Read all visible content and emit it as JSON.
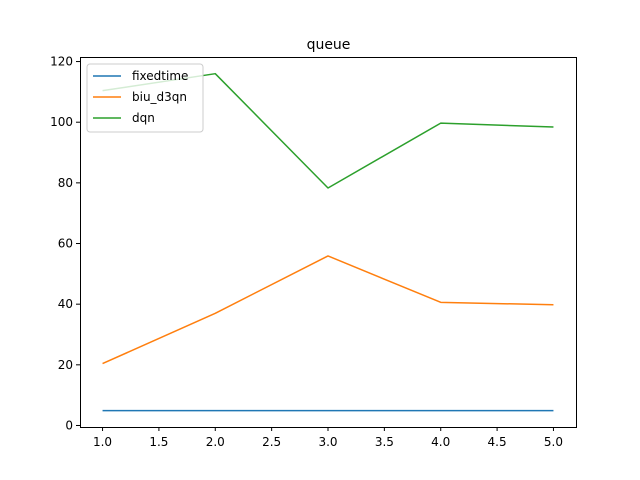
{
  "chart_data": {
    "type": "line",
    "title": "queue",
    "xlabel": "",
    "ylabel": "",
    "x": [
      1.0,
      2.0,
      3.0,
      4.0,
      5.0
    ],
    "xlim": [
      0.8,
      5.2
    ],
    "ylim": [
      -0.5,
      121.5
    ],
    "xticks": [
      "1.0",
      "1.5",
      "2.0",
      "2.5",
      "3.0",
      "3.5",
      "4.0",
      "4.5",
      "5.0"
    ],
    "xtick_values": [
      1.0,
      1.5,
      2.0,
      2.5,
      3.0,
      3.5,
      4.0,
      4.5,
      5.0
    ],
    "yticks": [
      "0",
      "20",
      "40",
      "60",
      "80",
      "100",
      "120"
    ],
    "ytick_values": [
      0,
      20,
      40,
      60,
      80,
      100,
      120
    ],
    "grid": false,
    "legend_position": "upper-left",
    "series": [
      {
        "name": "fixedtime",
        "color": "#1f77b4",
        "values": [
          4.9,
          4.9,
          4.9,
          4.9,
          4.9
        ]
      },
      {
        "name": "biu_d3qn",
        "color": "#ff7f0e",
        "values": [
          20.4,
          37.0,
          55.9,
          40.6,
          39.8
        ]
      },
      {
        "name": "dqn",
        "color": "#2ca02c",
        "values": [
          110.4,
          116.0,
          78.3,
          99.7,
          98.4
        ]
      }
    ]
  }
}
